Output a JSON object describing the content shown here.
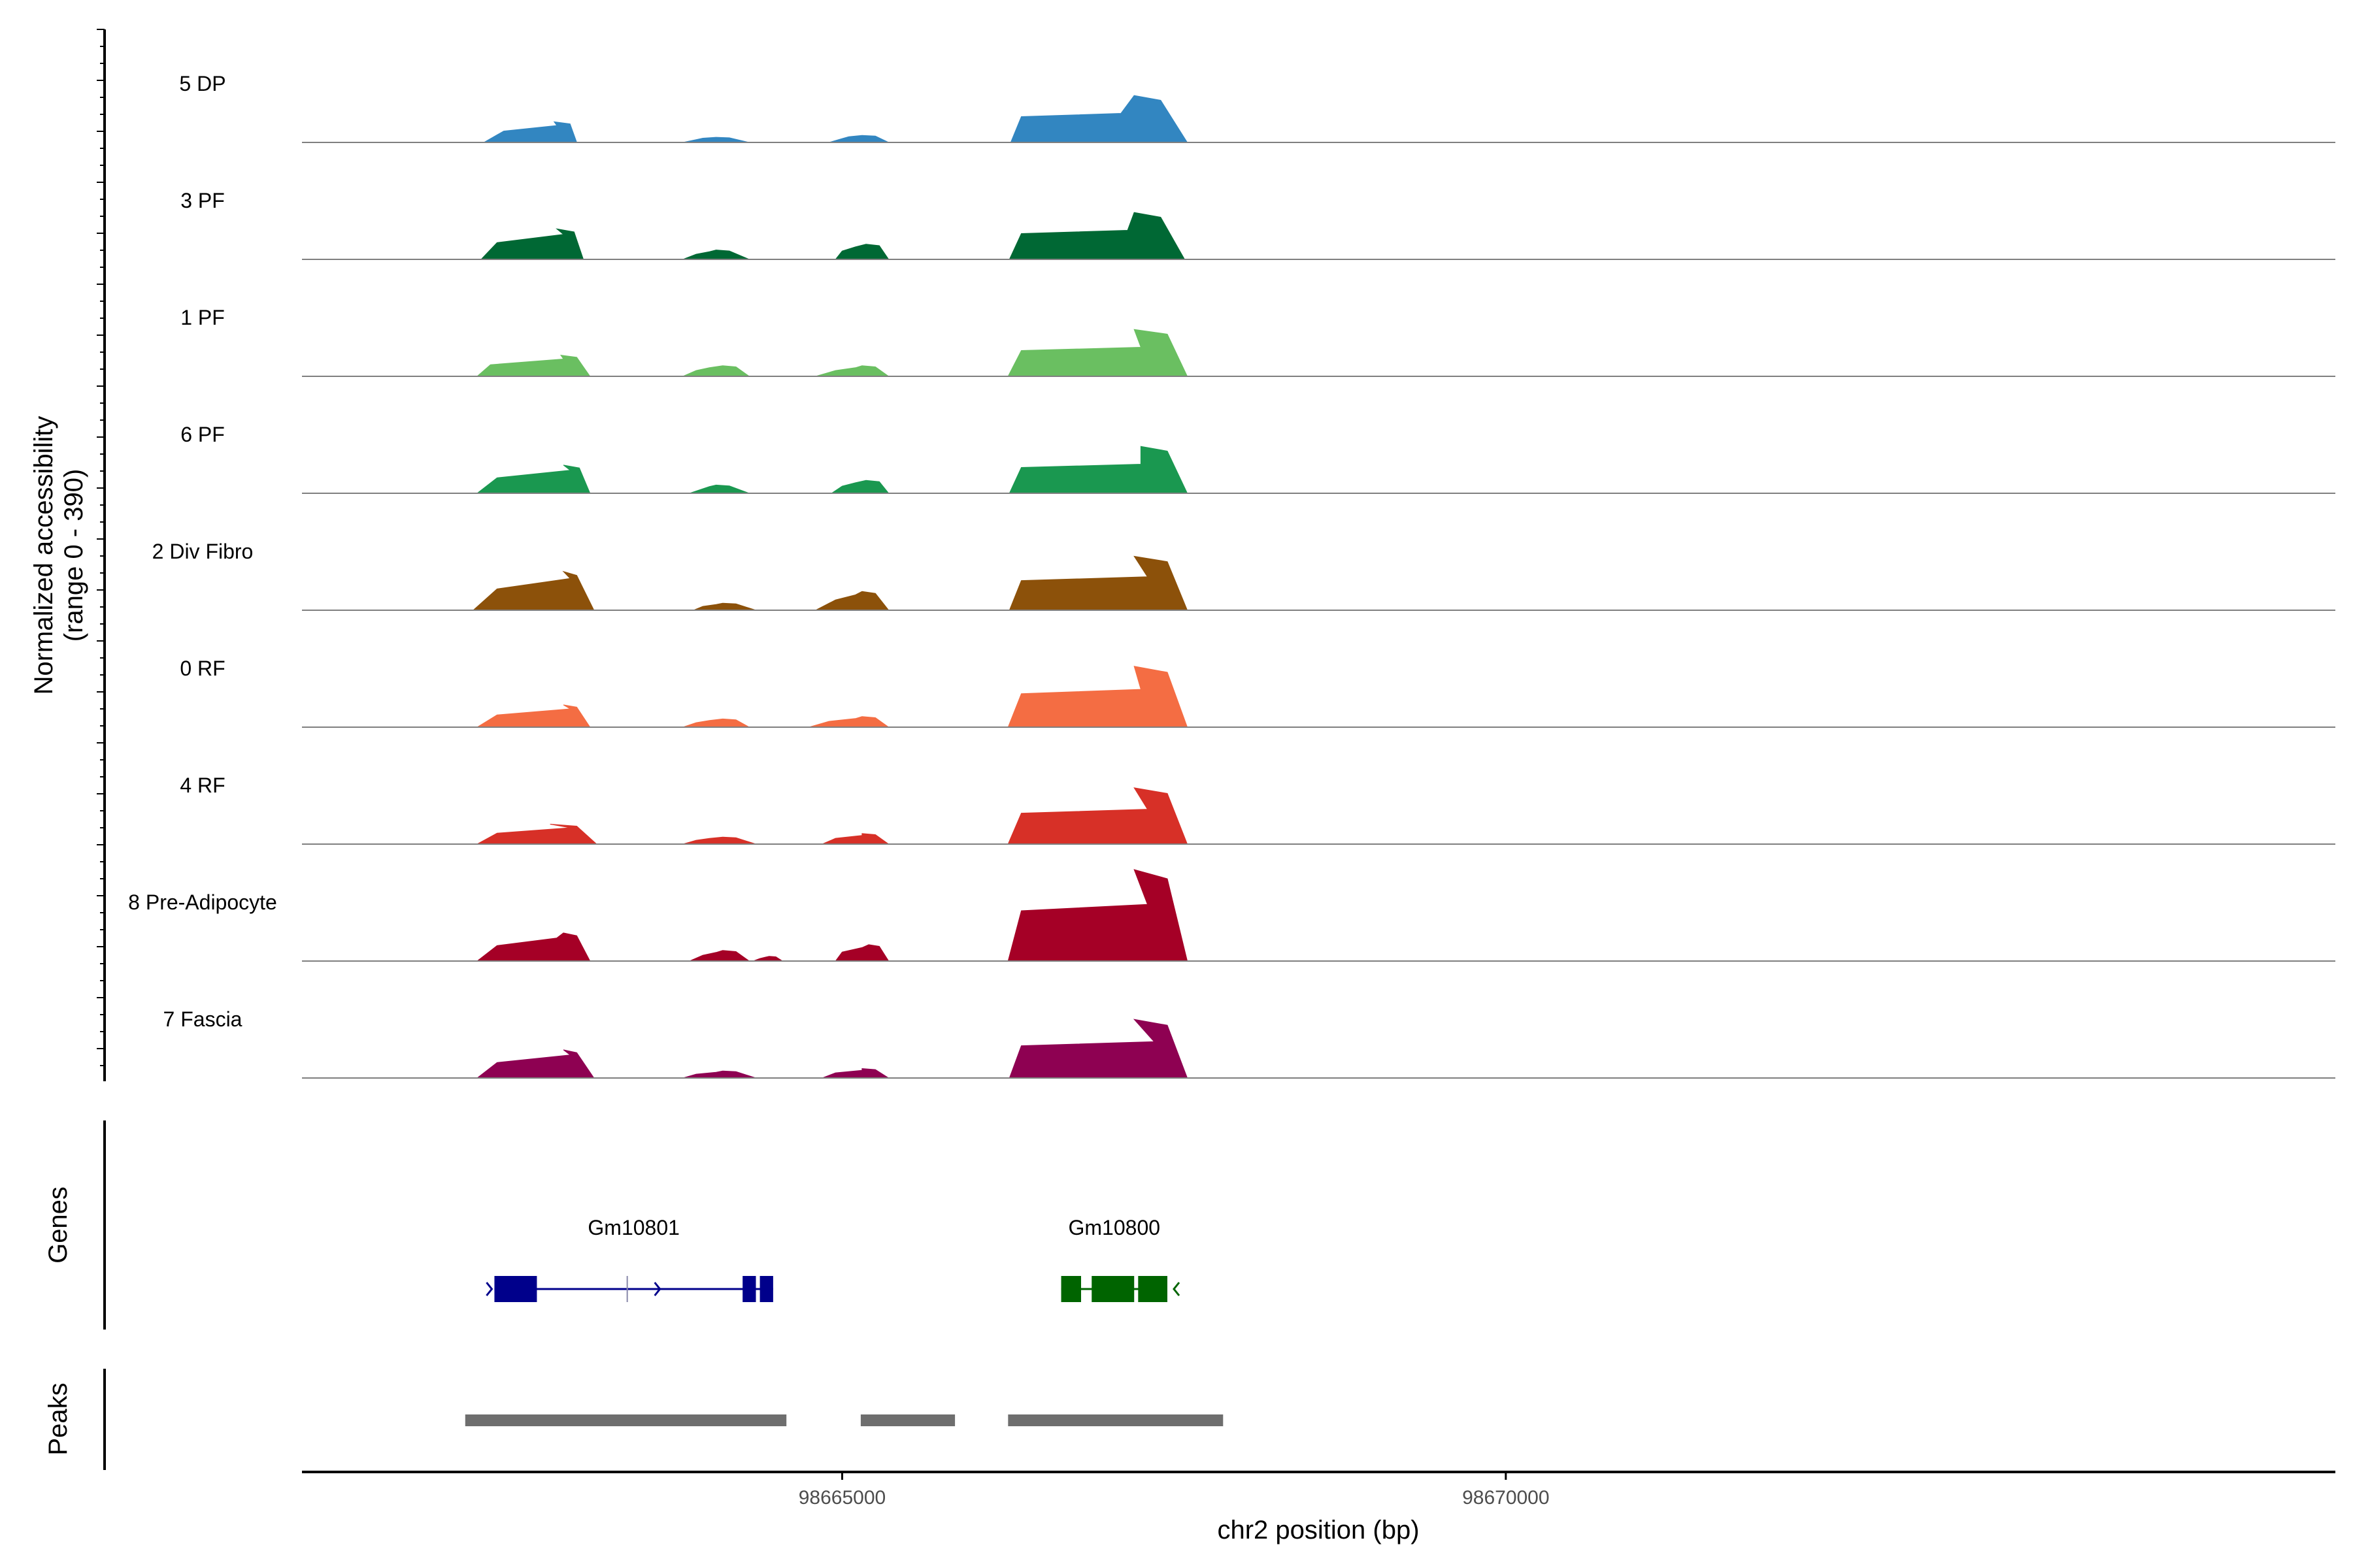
{
  "chart_data": {
    "type": "area",
    "title": "",
    "y_axis": {
      "label_line1": "Normalized accessibility",
      "label_line2": "(range 0 - 390)",
      "ylim": [
        0,
        390
      ]
    },
    "x_axis": {
      "label": "chr2 position (bp)",
      "xlim": [
        98660930,
        98676250
      ],
      "ticks": [
        98665000,
        98670000
      ],
      "tick_labels": [
        "98665000",
        "98670000"
      ]
    },
    "tracks": [
      {
        "name": "5 DP",
        "color": "#3286C1",
        "peaks": [
          [
            98662300,
            98662450,
            98662830,
            98662950,
            98663000,
            98662850,
            88
          ],
          [
            98663800,
            98663900,
            98664050,
            98664150,
            98664300,
            98663950,
            22
          ],
          [
            98664900,
            98665000,
            98665150,
            98665250,
            98665350,
            98665050,
            30
          ],
          [
            98666270,
            98666350,
            98667200,
            98667400,
            98667600,
            98667100,
            200
          ]
        ]
      },
      {
        "name": "3 PF",
        "color": "#006834",
        "peaks": [
          [
            98662280,
            98662400,
            98662850,
            98662980,
            98663050,
            98662900,
            130
          ],
          [
            98663800,
            98663900,
            98664050,
            98664150,
            98664300,
            98664000,
            40
          ],
          [
            98664950,
            98665000,
            98665180,
            98665280,
            98665350,
            98665100,
            65
          ],
          [
            98666260,
            98666350,
            98667200,
            98667400,
            98667580,
            98667150,
            200
          ]
        ]
      },
      {
        "name": "1 PF",
        "color": "#6ABF61",
        "peaks": [
          [
            98662250,
            98662350,
            98662880,
            98663000,
            98663100,
            98662900,
            90
          ],
          [
            98663800,
            98663900,
            98664100,
            98664200,
            98664300,
            98664000,
            45
          ],
          [
            98664800,
            98664950,
            98665150,
            98665250,
            98665350,
            98665100,
            45
          ],
          [
            98666250,
            98666350,
            98667200,
            98667450,
            98667600,
            98667250,
            200
          ]
        ]
      },
      {
        "name": "6 PF",
        "color": "#1A9850",
        "peaks": [
          [
            98662250,
            98662400,
            98662900,
            98663020,
            98663100,
            98662950,
            120
          ],
          [
            98663850,
            98663950,
            98664050,
            98664150,
            98664300,
            98664000,
            35
          ],
          [
            98664920,
            98665000,
            98665180,
            98665280,
            98665350,
            98665100,
            55
          ],
          [
            98666260,
            98666350,
            98667250,
            98667450,
            98667600,
            98667250,
            200
          ]
        ]
      },
      {
        "name": "2 Div Fibro",
        "color": "#8C510A",
        "peaks": [
          [
            98662220,
            98662400,
            98662900,
            98663000,
            98663130,
            98662950,
            165
          ],
          [
            98663880,
            98663950,
            98664100,
            98664200,
            98664350,
            98664050,
            30
          ],
          [
            98664800,
            98664950,
            98665150,
            98665250,
            98665350,
            98665100,
            80
          ],
          [
            98666260,
            98666350,
            98667200,
            98667450,
            98667600,
            98667300,
            230
          ]
        ]
      },
      {
        "name": "0 RF",
        "color": "#F46D43",
        "peaks": [
          [
            98662250,
            98662400,
            98662900,
            98663000,
            98663100,
            98662950,
            95
          ],
          [
            98663800,
            98663900,
            98664100,
            98664200,
            98664300,
            98664000,
            35
          ],
          [
            98664750,
            98664900,
            98665150,
            98665250,
            98665350,
            98665100,
            45
          ],
          [
            98666250,
            98666350,
            98667200,
            98667450,
            98667600,
            98667250,
            260
          ]
        ]
      },
      {
        "name": "4 RF",
        "color": "#D73027",
        "peaks": [
          [
            98662250,
            98662400,
            98662800,
            98663000,
            98663150,
            98662950,
            85
          ],
          [
            98663800,
            98663900,
            98664100,
            98664200,
            98664350,
            98664000,
            30
          ],
          [
            98664850,
            98664950,
            98665150,
            98665250,
            98665350,
            98665150,
            45
          ],
          [
            98666250,
            98666350,
            98667200,
            98667450,
            98667600,
            98667300,
            240
          ]
        ]
      },
      {
        "name": "8 Pre-Adipocyte",
        "color": "#A50026",
        "peaks": [
          [
            98662250,
            98662400,
            98662900,
            98663000,
            98663100,
            98662850,
            120
          ],
          [
            98663850,
            98663950,
            98664100,
            98664200,
            98664300,
            98664050,
            45
          ],
          [
            98664330,
            98664380,
            98664450,
            98664500,
            98664550,
            98664420,
            20
          ],
          [
            98664950,
            98665000,
            98665200,
            98665280,
            98665350,
            98665150,
            70
          ],
          [
            98666250,
            98666350,
            98667200,
            98667450,
            98667600,
            98667300,
            390
          ]
        ]
      },
      {
        "name": "7 Fascia",
        "color": "#8E0152",
        "peaks": [
          [
            98662250,
            98662400,
            98662900,
            98663000,
            98663130,
            98662950,
            120
          ],
          [
            98663800,
            98663900,
            98664100,
            98664200,
            98664350,
            98664050,
            30
          ],
          [
            98664850,
            98664950,
            98665150,
            98665250,
            98665350,
            98665150,
            40
          ],
          [
            98666260,
            98666350,
            98667200,
            98667450,
            98667600,
            98667350,
            250
          ]
        ]
      }
    ],
    "genes_panel": {
      "label": "Genes",
      "genes": [
        {
          "name": "Gm10801",
          "start": 98662380,
          "end": 98664480,
          "strand": "+",
          "color": "#00008B",
          "exons": [
            [
              98662380,
              98662700
            ],
            [
              98664250,
              98664350
            ],
            [
              98664380,
              98664480
            ]
          ]
        },
        {
          "name": "Gm10800",
          "start": 98666650,
          "end": 98667450,
          "strand": "-",
          "color": "#006400",
          "exons": [
            [
              98666650,
              98666800
            ],
            [
              98666880,
              98667200
            ],
            [
              98667230,
              98667450
            ]
          ]
        }
      ]
    },
    "peaks_panel": {
      "label": "Peaks",
      "color": "#6E6E6E",
      "regions": [
        [
          98662160,
          98664580
        ],
        [
          98665140,
          98665850
        ],
        [
          98666250,
          98667870
        ]
      ]
    },
    "grid": false,
    "legend": "none"
  }
}
